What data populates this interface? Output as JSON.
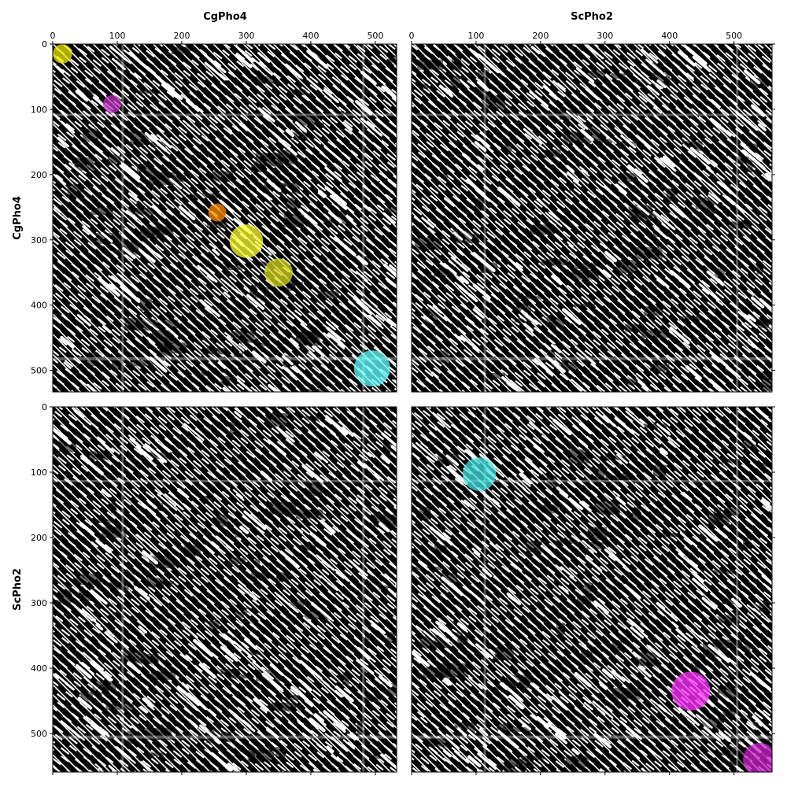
{
  "chart_data": {
    "type": "heatmap",
    "description_kind": "dot-plot matrix",
    "column_labels": [
      "CgPho4",
      "ScPho2"
    ],
    "row_labels": [
      "CgPho4",
      "ScPho2"
    ],
    "sequence_lengths": {
      "CgPho4": 533,
      "ScPho2": 559
    },
    "x_ticks": [
      0,
      100,
      200,
      300,
      400,
      500
    ],
    "y_ticks": [
      0,
      100,
      200,
      300,
      400,
      500
    ],
    "background_color": "#000000",
    "dot_color": "#ffffff",
    "panels": [
      {
        "row": "CgPho4",
        "col": "CgPho4",
        "xlim": [
          0,
          533
        ],
        "ylim": [
          533,
          0
        ],
        "highlights": [
          {
            "x": 15,
            "y": 15,
            "r": 15,
            "color": "#e8e800"
          },
          {
            "x": 92,
            "y": 92,
            "r": 14,
            "color": "#c030c0"
          },
          {
            "x": 255,
            "y": 258,
            "r": 14,
            "color": "#ff8c00"
          },
          {
            "x": 300,
            "y": 302,
            "r": 26,
            "color": "#ffff33"
          },
          {
            "x": 350,
            "y": 350,
            "r": 22,
            "color": "#d8d820"
          },
          {
            "x": 495,
            "y": 497,
            "r": 28,
            "color": "#66ffff"
          }
        ]
      },
      {
        "row": "CgPho4",
        "col": "ScPho2",
        "xlim": [
          0,
          559
        ],
        "ylim": [
          533,
          0
        ],
        "highlights": []
      },
      {
        "row": "ScPho2",
        "col": "CgPho4",
        "xlim": [
          0,
          533
        ],
        "ylim": [
          559,
          0
        ],
        "highlights": []
      },
      {
        "row": "ScPho2",
        "col": "ScPho2",
        "xlim": [
          0,
          559
        ],
        "ylim": [
          559,
          0
        ],
        "highlights": [
          {
            "x": 105,
            "y": 103,
            "r": 26,
            "color": "#44e0e0"
          },
          {
            "x": 433,
            "y": 435,
            "r": 30,
            "color": "#ff33ff"
          },
          {
            "x": 540,
            "y": 540,
            "r": 26,
            "color": "#cc22cc"
          }
        ]
      }
    ]
  }
}
